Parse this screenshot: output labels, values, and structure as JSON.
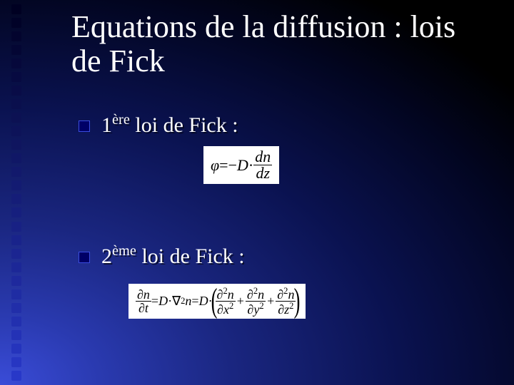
{
  "slide": {
    "title": "Equations de la diffusion : lois de Fick",
    "bullets": [
      {
        "ordinal": "1",
        "sup": "ère",
        "rest": " loi de Fick :"
      },
      {
        "ordinal": "2",
        "sup": "ème",
        "rest": " loi de Fick :"
      }
    ],
    "equations": {
      "first": {
        "lhs_symbol": "φ",
        "eq": "=−",
        "coeff": "D",
        "dot": "·",
        "frac_num": "dn",
        "frac_den": "dz"
      },
      "second": {
        "lhs_num_d": "∂",
        "lhs_num_var": "n",
        "lhs_den_d": "∂",
        "lhs_den_var": "t",
        "eq": "=",
        "coeff": "D",
        "dot": "·",
        "nabla": "∇",
        "nabla_pow": "2",
        "nabla_var": "n",
        "termx_num_d": "∂",
        "termx_num_pow": "2",
        "termx_num_var": "n",
        "termx_den_d": "∂",
        "termx_den_var": "x",
        "termx_den_pow": "2",
        "termy_num_d": "∂",
        "termy_num_pow": "2",
        "termy_num_var": "n",
        "termy_den_d": "∂",
        "termy_den_var": "y",
        "termy_den_pow": "2",
        "termz_num_d": "∂",
        "termz_num_pow": "2",
        "termz_num_var": "n",
        "termz_den_d": "∂",
        "termz_den_var": "z",
        "termz_den_pow": "2",
        "plus": "+"
      }
    }
  },
  "decor": {
    "square_count": 28,
    "square_color_top": "#000022",
    "square_color_bottom": "#2838c8"
  }
}
